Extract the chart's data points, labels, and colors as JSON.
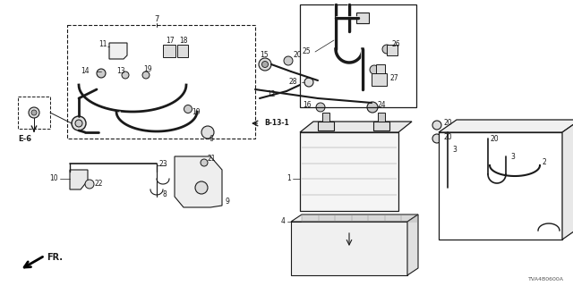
{
  "bg_color": "#ffffff",
  "line_color": "#1a1a1a",
  "fig_width": 6.4,
  "fig_height": 3.2,
  "dpi": 100,
  "watermark": "TVA4B0600A",
  "direction_label": "FR."
}
